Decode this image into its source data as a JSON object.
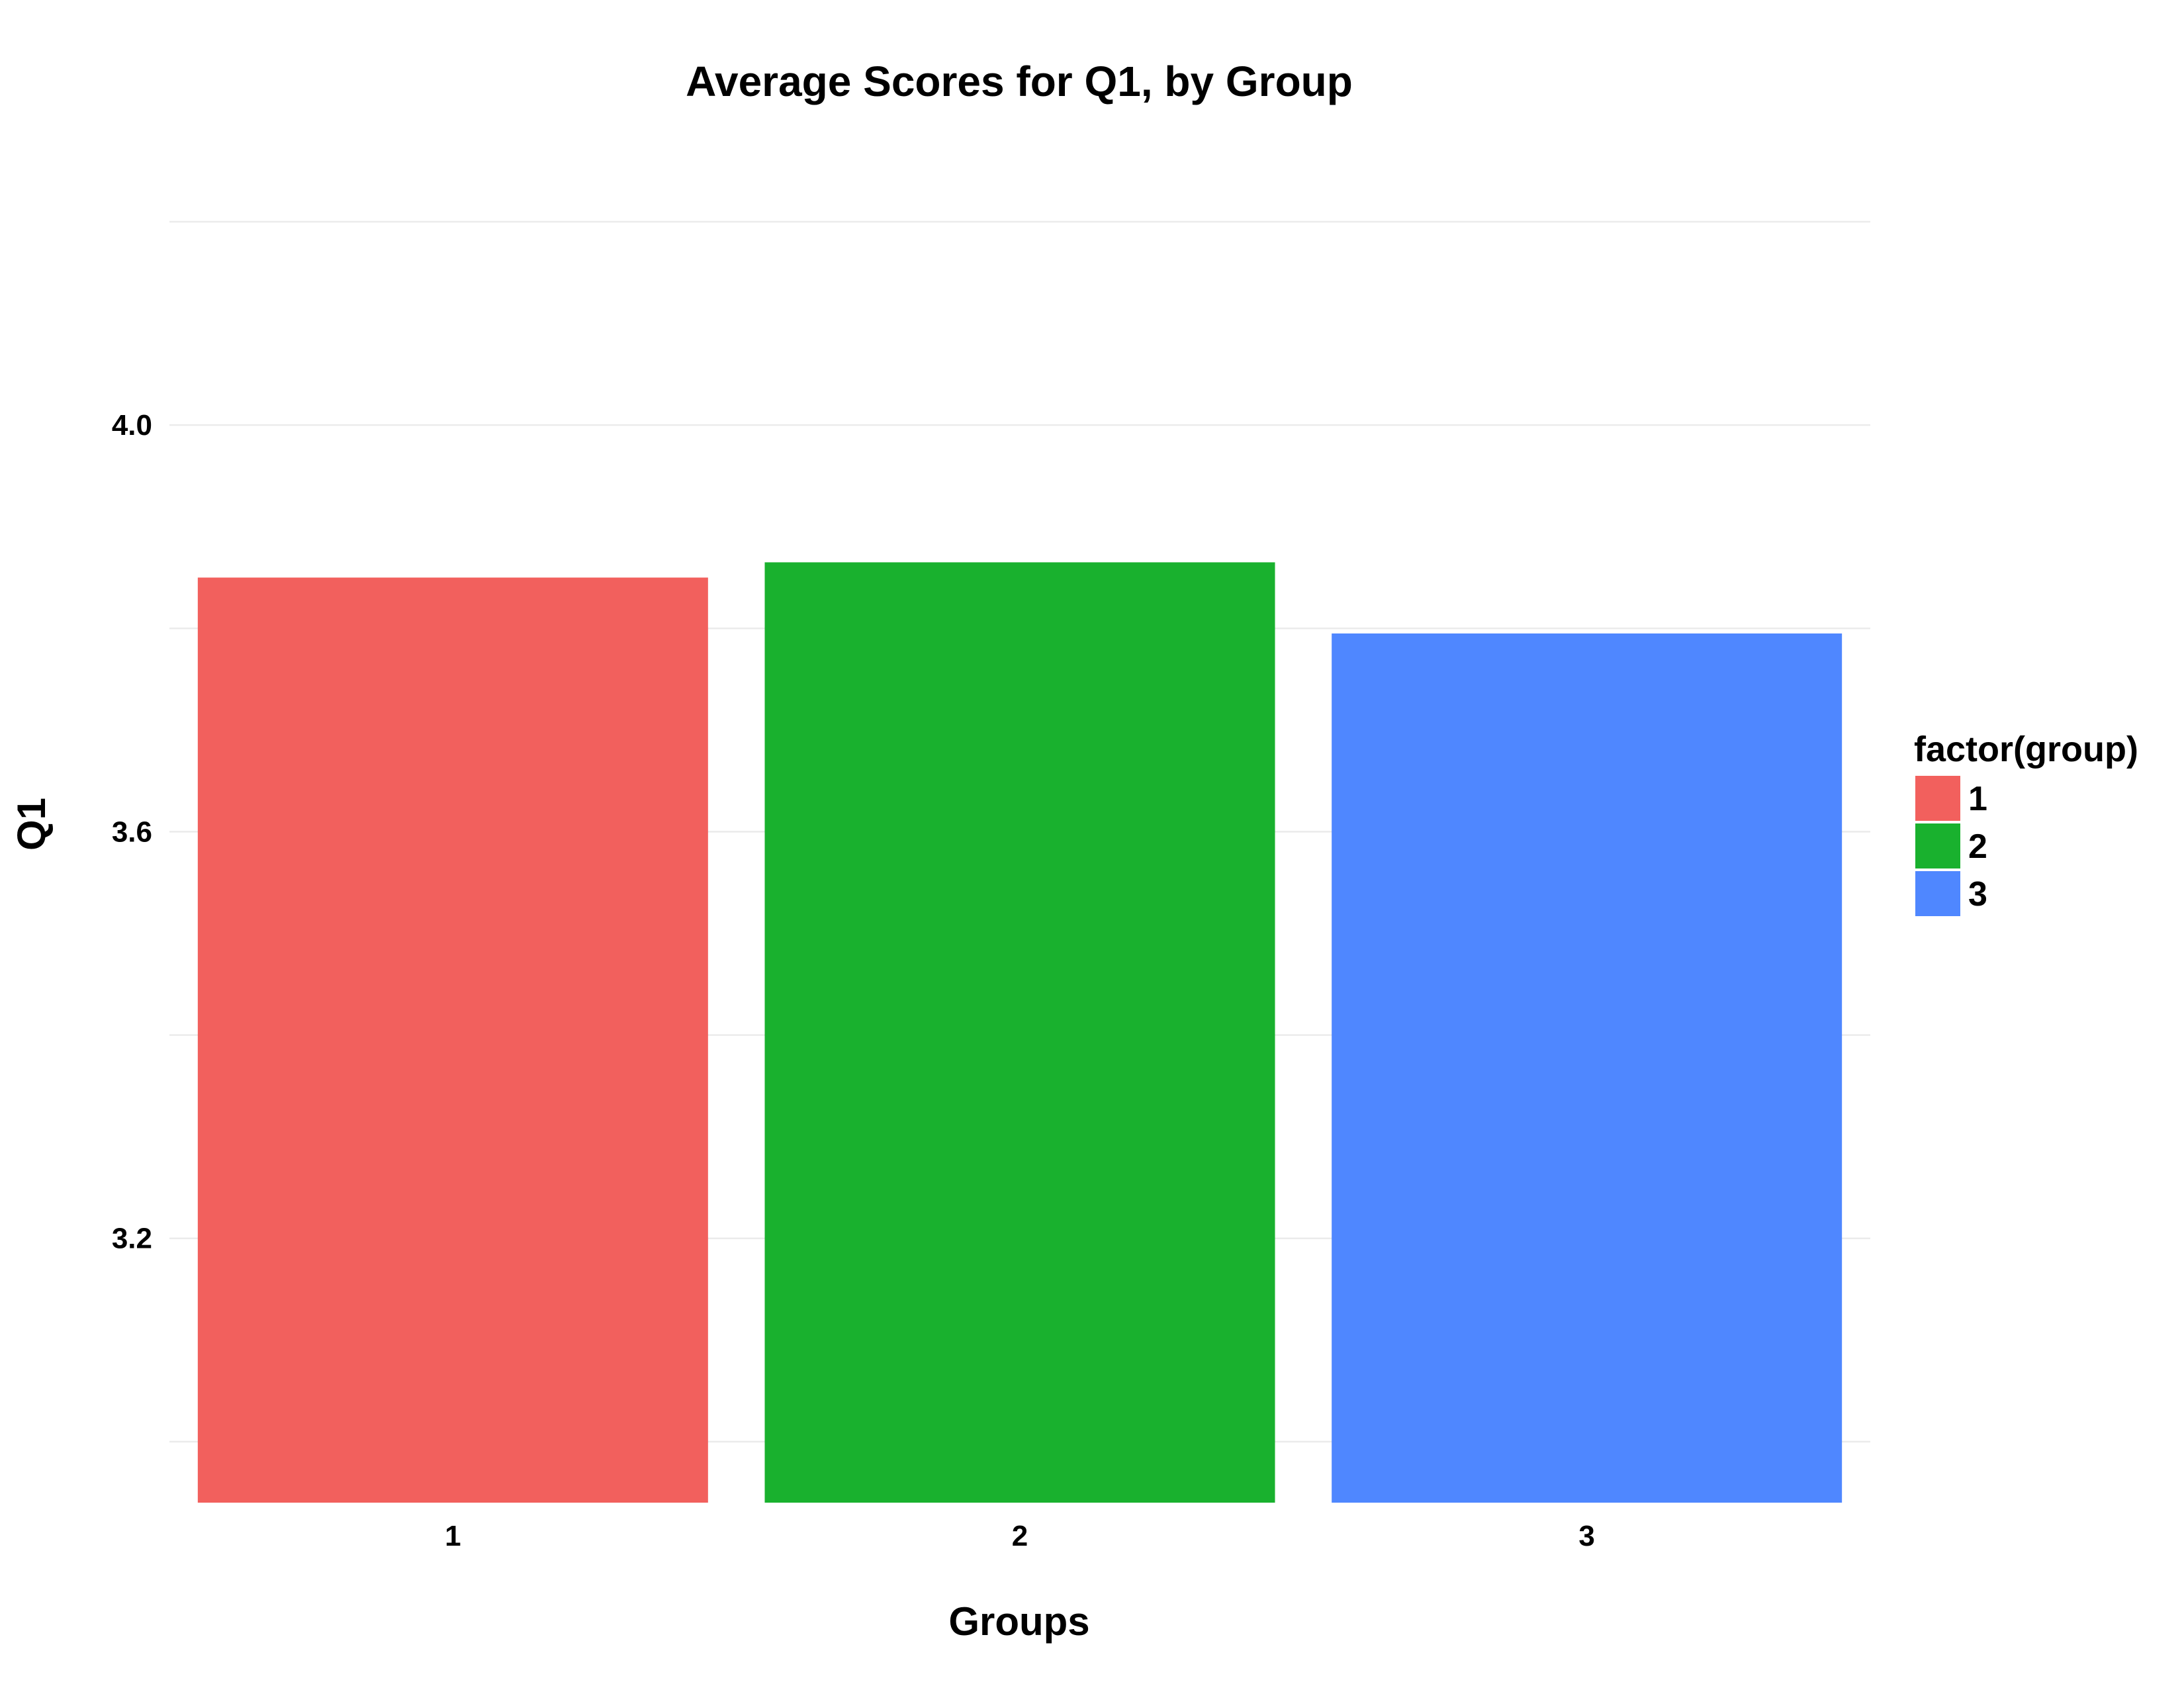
{
  "chart_data": {
    "type": "bar",
    "title": "Average Scores for Q1, by Group",
    "xlabel": "Groups",
    "ylabel": "Q1",
    "categories": [
      "1",
      "2",
      "3"
    ],
    "values": [
      3.85,
      3.865,
      3.795
    ],
    "colors": [
      "#f2605d",
      "#19b12e",
      "#4f87ff"
    ],
    "ylim": [
      2.94,
      4.2
    ],
    "yticks": [
      3.2,
      3.6,
      4.0
    ],
    "ytick_labels": [
      "3.2",
      "3.6",
      "4.0"
    ],
    "grid": true,
    "legend": {
      "title": "factor(group)",
      "placement": "right",
      "entries": [
        "1",
        "2",
        "3"
      ]
    }
  }
}
